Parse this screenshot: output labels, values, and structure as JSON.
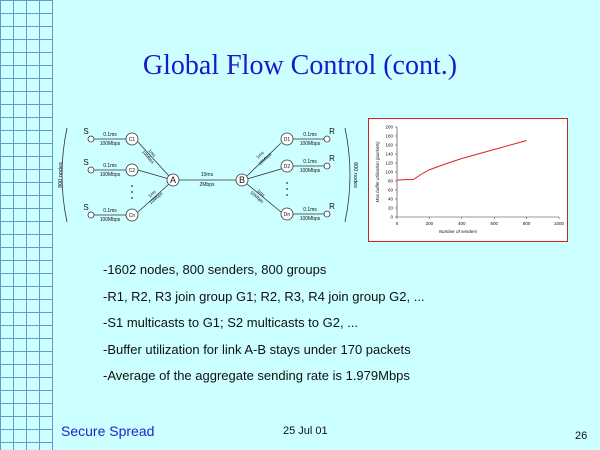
{
  "slide": {
    "title": "Global Flow Control (cont.)",
    "bullets": [
      "-1602 nodes, 800 senders, 800 groups",
      "-R1, R2, R3 join group G1; R2, R3, R4 join group G2, ...",
      "-S1 multicasts to G1; S2 multicasts to G2, ...",
      "-Buffer utilization for link A-B stays under 170 packets",
      "-Average of the aggregate sending rate is 1.979Mbps"
    ],
    "footer": {
      "left": "Secure Spread",
      "date": "25 Jul 01",
      "page": "26"
    }
  },
  "diagram": {
    "left_group_label": "800 nodes",
    "right_group_label": "800 nodes",
    "node_a": "A",
    "node_b": "B",
    "senders": [
      "S",
      "S",
      "S"
    ],
    "left_relays": [
      "C1",
      "C2",
      "Cn"
    ],
    "right_relays": [
      "D1",
      "D2",
      "Dn"
    ],
    "receivers": [
      "R",
      "R",
      "R"
    ],
    "access_link": {
      "delay": "0.1ms",
      "bandwidth": "100Mbps"
    },
    "fan_link": {
      "delay": "1ms",
      "bandwidth": "10Mbps"
    },
    "bottleneck_link": {
      "delay": "10ms",
      "bandwidth": "2Mbps"
    }
  },
  "chart_data": {
    "type": "line",
    "xlabel": "Number of senders",
    "ylabel": "Max buffer utilization (packets)",
    "xlim": [
      0,
      1000
    ],
    "ylim": [
      0,
      200
    ],
    "x_ticks": [
      0,
      200,
      400,
      600,
      800,
      1000
    ],
    "y_ticks": [
      0,
      20,
      40,
      60,
      80,
      100,
      120,
      140,
      160,
      180,
      200
    ],
    "series": [
      {
        "color": "#dd2222",
        "x": [
          0,
          50,
          100,
          150,
          200,
          300,
          400,
          500,
          600,
          700,
          800
        ],
        "y": [
          82,
          83,
          83,
          95,
          105,
          118,
          130,
          140,
          150,
          160,
          170
        ]
      }
    ]
  }
}
